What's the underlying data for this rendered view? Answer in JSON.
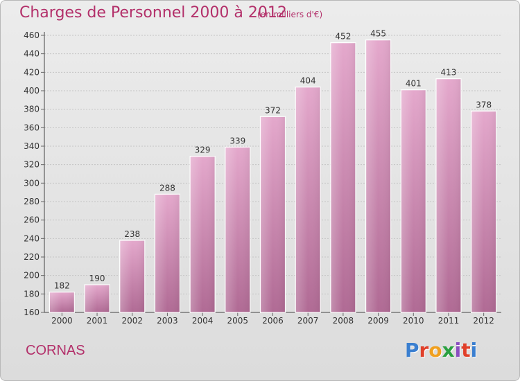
{
  "header": {
    "title": "Charges de Personnel 2000 à 2012",
    "subtitle": "(en milliers d'€)"
  },
  "footer": {
    "commune": "CORNAS",
    "logo_text": "Proxiti"
  },
  "colors": {
    "title": "#b3306a",
    "bar_top": "#e4a8cc",
    "bar_bottom": "#b06a94",
    "logo_letters": [
      "#3a7fd0",
      "#e0402a",
      "#f0a020",
      "#2aa040",
      "#8a4fc0",
      "#e0402a",
      "#3a7fd0"
    ]
  },
  "chart_data": {
    "type": "bar",
    "title": "Charges de Personnel 2000 à 2012",
    "xlabel": "",
    "ylabel": "",
    "categories": [
      "2000",
      "2001",
      "2002",
      "2003",
      "2004",
      "2005",
      "2006",
      "2007",
      "2008",
      "2009",
      "2010",
      "2011",
      "2012"
    ],
    "values": [
      182,
      190,
      238,
      288,
      329,
      339,
      372,
      404,
      452,
      455,
      401,
      413,
      378
    ],
    "ylim": [
      160,
      460
    ],
    "yticks": [
      160,
      180,
      200,
      220,
      240,
      260,
      280,
      300,
      320,
      340,
      360,
      380,
      400,
      420,
      440,
      460
    ],
    "grid": true
  }
}
